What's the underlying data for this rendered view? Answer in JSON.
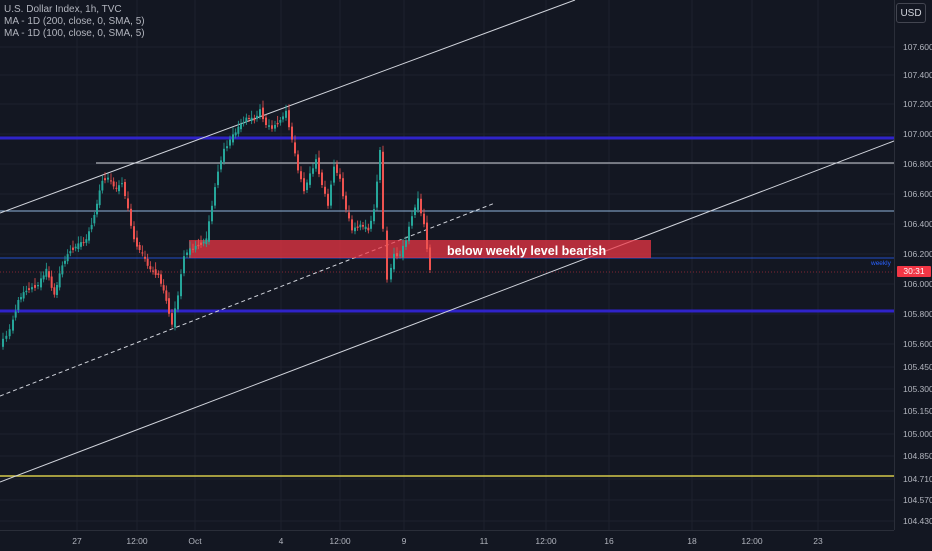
{
  "symbol": {
    "title": "U.S. Dollar Index, 1h, TVC",
    "indicators": [
      "MA - 1D (200, close, 0, SMA, 5)",
      "MA - 1D (100, close, 0, SMA, 5)"
    ]
  },
  "currency_button": "USD",
  "price_axis": {
    "ticks": [
      "107.600",
      "107.400",
      "107.200",
      "107.000",
      "106.800",
      "106.600",
      "106.400",
      "106.200",
      "106.000",
      "105.800",
      "105.600",
      "105.450",
      "105.300",
      "105.150",
      "105.000",
      "104.850",
      "104.710",
      "104.570",
      "104.430"
    ],
    "current_countdown": "30:31"
  },
  "time_axis": {
    "labels": [
      "27",
      "12:00",
      "Oct",
      "12:00",
      "4",
      "12:00",
      "9",
      "11",
      "12:00",
      "16",
      "18",
      "12:00",
      "23"
    ]
  },
  "annotations": {
    "zone_text": "below weekly level bearish",
    "weekly_label": "weekly"
  },
  "colors": {
    "background": "#131722",
    "candle_up": "#26a69a",
    "candle_down": "#ef5350",
    "support_line": "#2f23c9",
    "zone": "#f23645",
    "ma_yellow": "#d4c94a"
  }
}
